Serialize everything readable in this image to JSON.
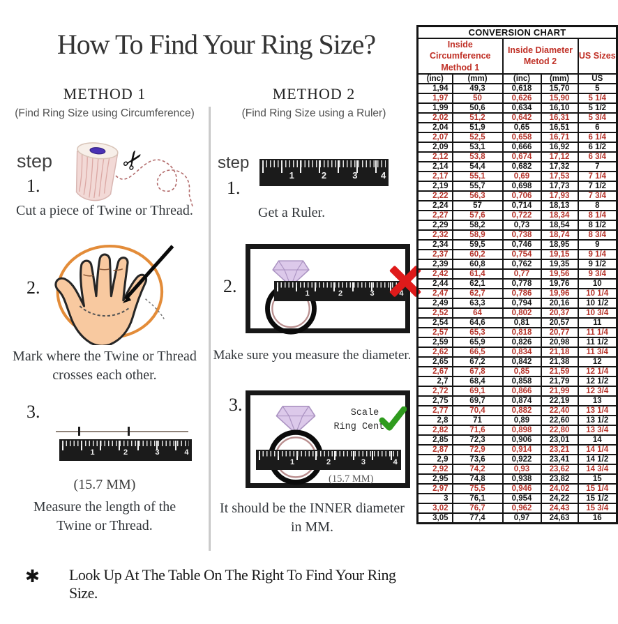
{
  "title": "How To Find Your Ring Size?",
  "footer": {
    "bullet": "✱",
    "text": "Look Up At The Table On The Right To Find Your Ring Size."
  },
  "ruler_numbers": [
    "1",
    "2",
    "3",
    "4"
  ],
  "method1": {
    "heading": "METHOD 1",
    "subheading": "(Find Ring Size using Circumference)",
    "step_label": "step",
    "step1": {
      "num": "1.",
      "lines": [
        "Cut a piece of  Twine or Thread."
      ]
    },
    "step2": {
      "num": "2.",
      "lines": [
        "Mark where the Twine or Thread",
        "crosses each other."
      ]
    },
    "step3": {
      "num": "3.",
      "note": "(15.7 MM)",
      "lines": [
        "Measure the length of the",
        "Twine or Thread."
      ]
    }
  },
  "method2": {
    "heading": "METHOD 2",
    "subheading": "(Find Ring Size using a Ruler)",
    "step_label": "step",
    "step1": {
      "num": "1.",
      "lines": [
        "Get a Ruler."
      ]
    },
    "step2": {
      "num": "2.",
      "lines": [
        "Make sure you measure the diameter."
      ]
    },
    "step3": {
      "num": "3.",
      "scale_line1": "Scale",
      "scale_line2": "Ring Center",
      "note": "(15.7 MM)",
      "lines": [
        "It should be the INNER diameter",
        "in MM."
      ]
    }
  },
  "chart": {
    "title": "CONVERSION CHART",
    "groups": [
      {
        "line1": "Inside Circumference",
        "line2": "Method 1"
      },
      {
        "line1": "Inside Diameter",
        "line2": "Metod 2"
      },
      {
        "line1": "US Sizes",
        "line2": ""
      }
    ],
    "sub_headers": [
      "(inc)",
      "(mm)",
      "(inc)",
      "(mm)",
      "US"
    ],
    "rows": [
      {
        "c": [
          "1,94",
          "49,3",
          "0,618",
          "15,70",
          "5"
        ],
        "red": false
      },
      {
        "c": [
          "1,97",
          "50",
          "0,626",
          "15,90",
          "5 1/4"
        ],
        "red": true
      },
      {
        "c": [
          "1,99",
          "50,6",
          "0,634",
          "16,10",
          "5 1/2"
        ],
        "red": false
      },
      {
        "c": [
          "2,02",
          "51,2",
          "0,642",
          "16,31",
          "5 3/4"
        ],
        "red": true
      },
      {
        "c": [
          "2,04",
          "51,9",
          "0,65",
          "16,51",
          "6"
        ],
        "red": false
      },
      {
        "c": [
          "2,07",
          "52,5",
          "0,658",
          "16,71",
          "6 1/4"
        ],
        "red": true
      },
      {
        "c": [
          "2,09",
          "53,1",
          "0,666",
          "16,92",
          "6 1/2"
        ],
        "red": false
      },
      {
        "c": [
          "2,12",
          "53,8",
          "0,674",
          "17,12",
          "6 3/4"
        ],
        "red": true
      },
      {
        "c": [
          "2,14",
          "54,4",
          "0,682",
          "17,32",
          "7"
        ],
        "red": false
      },
      {
        "c": [
          "2,17",
          "55,1",
          "0,69",
          "17,53",
          "7 1/4"
        ],
        "red": true
      },
      {
        "c": [
          "2,19",
          "55,7",
          "0,698",
          "17,73",
          "7 1/2"
        ],
        "red": false
      },
      {
        "c": [
          "2,22",
          "56,3",
          "0,706",
          "17,93",
          "7 3/4"
        ],
        "red": true
      },
      {
        "c": [
          "2,24",
          "57",
          "0,714",
          "18,13",
          "8"
        ],
        "red": false
      },
      {
        "c": [
          "2,27",
          "57,6",
          "0,722",
          "18,34",
          "8 1/4"
        ],
        "red": true
      },
      {
        "c": [
          "2,29",
          "58,2",
          "0,73",
          "18,54",
          "8 1/2"
        ],
        "red": false
      },
      {
        "c": [
          "2,32",
          "58,9",
          "0,738",
          "18,74",
          "8 3/4"
        ],
        "red": true
      },
      {
        "c": [
          "2,34",
          "59,5",
          "0,746",
          "18,95",
          "9"
        ],
        "red": false
      },
      {
        "c": [
          "2,37",
          "60,2",
          "0,754",
          "19,15",
          "9 1/4"
        ],
        "red": true
      },
      {
        "c": [
          "2,39",
          "60,8",
          "0,762",
          "19,35",
          "9 1/2"
        ],
        "red": false
      },
      {
        "c": [
          "2,42",
          "61,4",
          "0,77",
          "19,56",
          "9 3/4"
        ],
        "red": true
      },
      {
        "c": [
          "2,44",
          "62,1",
          "0,778",
          "19,76",
          "10"
        ],
        "red": false
      },
      {
        "c": [
          "2,47",
          "62,7",
          "0,786",
          "19,96",
          "10 1/4"
        ],
        "red": true
      },
      {
        "c": [
          "2,49",
          "63,3",
          "0,794",
          "20,16",
          "10 1/2"
        ],
        "red": false
      },
      {
        "c": [
          "2,52",
          "64",
          "0,802",
          "20,37",
          "10 3/4"
        ],
        "red": true
      },
      {
        "c": [
          "2,54",
          "64,6",
          "0,81",
          "20,57",
          "11"
        ],
        "red": false
      },
      {
        "c": [
          "2,57",
          "65,3",
          "0,818",
          "20,77",
          "11 1/4"
        ],
        "red": true
      },
      {
        "c": [
          "2,59",
          "65,9",
          "0,826",
          "20,98",
          "11 1/2"
        ],
        "red": false
      },
      {
        "c": [
          "2,62",
          "66,5",
          "0,834",
          "21,18",
          "11 3/4"
        ],
        "red": true
      },
      {
        "c": [
          "2,65",
          "67,2",
          "0,842",
          "21,38",
          "12"
        ],
        "red": false
      },
      {
        "c": [
          "2,67",
          "67,8",
          "0,85",
          "21,59",
          "12 1/4"
        ],
        "red": true
      },
      {
        "c": [
          "2,7",
          "68,4",
          "0,858",
          "21,79",
          "12 1/2"
        ],
        "red": false
      },
      {
        "c": [
          "2,72",
          "69,1",
          "0,866",
          "21,99",
          "12 3/4"
        ],
        "red": true
      },
      {
        "c": [
          "2,75",
          "69,7",
          "0,874",
          "22,19",
          "13"
        ],
        "red": false
      },
      {
        "c": [
          "2,77",
          "70,4",
          "0,882",
          "22,40",
          "13 1/4"
        ],
        "red": true
      },
      {
        "c": [
          "2,8",
          "71",
          "0,89",
          "22,60",
          "13 1/2"
        ],
        "red": false
      },
      {
        "c": [
          "2,82",
          "71,6",
          "0,898",
          "22,80",
          "13 3/4"
        ],
        "red": true
      },
      {
        "c": [
          "2,85",
          "72,3",
          "0,906",
          "23,01",
          "14"
        ],
        "red": false
      },
      {
        "c": [
          "2,87",
          "72,9",
          "0,914",
          "23,21",
          "14 1/4"
        ],
        "red": true
      },
      {
        "c": [
          "2,9",
          "73,6",
          "0,922",
          "23,41",
          "14 1/2"
        ],
        "red": false
      },
      {
        "c": [
          "2,92",
          "74,2",
          "0,93",
          "23,62",
          "14 3/4"
        ],
        "red": true
      },
      {
        "c": [
          "2,95",
          "74,8",
          "0,938",
          "23,82",
          "15"
        ],
        "red": false
      },
      {
        "c": [
          "2,97",
          "75,5",
          "0,946",
          "24,02",
          "15 1/4"
        ],
        "red": true
      },
      {
        "c": [
          "3",
          "76,1",
          "0,954",
          "24,22",
          "15 1/2"
        ],
        "red": false
      },
      {
        "c": [
          "3,02",
          "76,7",
          "0,962",
          "24,43",
          "15 3/4"
        ],
        "red": true
      },
      {
        "c": [
          "3,05",
          "77,4",
          "0,97",
          "24,63",
          "16"
        ],
        "red": false
      }
    ]
  },
  "colors": {
    "table_red": "#b5332a",
    "header_red": "#c03026",
    "check_green": "#2f9b1e",
    "cross_red": "#df1a1a",
    "hand_skin": "#f8c9a0",
    "circle_orange": "#e2862e"
  }
}
